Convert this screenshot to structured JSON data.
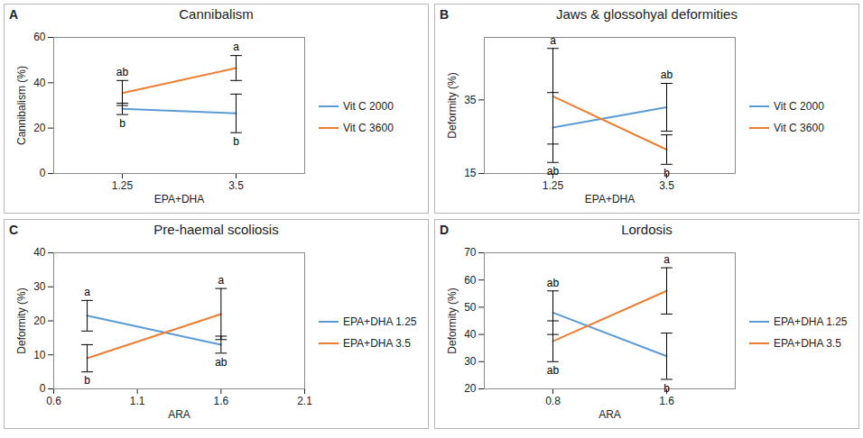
{
  "chart_data": [
    {
      "panel": "A",
      "type": "line",
      "title": "Cannibalism",
      "x_label": "EPA+DHA",
      "y_label": "Cannibalism (%)",
      "categories": [
        "1.25",
        "3.5"
      ],
      "ylim": [
        0,
        60
      ],
      "yticks": [
        0,
        20,
        40,
        60
      ],
      "legend": "right",
      "series": [
        {
          "name": "Vit C 2000",
          "color": "#5b9bd5",
          "values": [
            28.5,
            26.5
          ],
          "errors": [
            2.5,
            8.5
          ],
          "letters": [
            "b",
            "b"
          ]
        },
        {
          "name": "Vit C 3600",
          "color": "#ed7d31",
          "values": [
            35.5,
            46.5
          ],
          "errors": [
            5.5,
            5.5
          ],
          "letters": [
            "ab",
            "a"
          ]
        }
      ]
    },
    {
      "panel": "B",
      "type": "line",
      "title": "Jaws & glossohyal deformities",
      "x_label": "EPA+DHA",
      "y_label": "Deformity (%)",
      "categories": [
        "1.25",
        "3.5"
      ],
      "ylim": [
        15,
        52
      ],
      "yticks": [
        15,
        35
      ],
      "legend": "right",
      "series": [
        {
          "name": "Vit C 2000",
          "color": "#5b9bd5",
          "values": [
            27.5,
            33
          ],
          "errors": [
            9.5,
            6.5
          ],
          "letters": [
            "ab",
            "ab"
          ]
        },
        {
          "name": "Vit C 3600",
          "color": "#ed7d31",
          "values": [
            36,
            21.5
          ],
          "errors": [
            13,
            4
          ],
          "letters": [
            "a",
            "b"
          ]
        }
      ]
    },
    {
      "panel": "C",
      "type": "line",
      "title": "Pre-haemal scoliosis",
      "x_label": "ARA",
      "y_label": "Deformity (%)",
      "x": [
        0.8,
        1.6
      ],
      "xlim": [
        0.6,
        2.1
      ],
      "xticks": [
        0.6,
        1.1,
        1.6,
        2.1
      ],
      "ylim": [
        0,
        40
      ],
      "yticks": [
        0,
        10,
        20,
        30,
        40
      ],
      "legend": "right",
      "series": [
        {
          "name": "EPA+DHA 1.25",
          "color": "#5b9bd5",
          "values": [
            21.5,
            13
          ],
          "errors": [
            4.5,
            2.5
          ],
          "letters": [
            "a",
            "ab"
          ]
        },
        {
          "name": "EPA+DHA 3.5",
          "color": "#ed7d31",
          "values": [
            9,
            22
          ],
          "errors": [
            4,
            7.5
          ],
          "letters": [
            "b",
            "a"
          ]
        }
      ]
    },
    {
      "panel": "D",
      "type": "line",
      "title": "Lordosis",
      "x_label": "ARA",
      "y_label": "Deformity (%)",
      "categories": [
        "0.8",
        "1.6"
      ],
      "ylim": [
        20,
        70
      ],
      "yticks": [
        20,
        30,
        40,
        50,
        60,
        70
      ],
      "legend": "right",
      "series": [
        {
          "name": "EPA+DHA 1.25",
          "color": "#5b9bd5",
          "values": [
            48,
            32
          ],
          "errors": [
            8,
            8.5
          ],
          "letters": [
            "ab",
            "b"
          ]
        },
        {
          "name": "EPA+DHA 3.5",
          "color": "#ed7d31",
          "values": [
            37.5,
            56
          ],
          "errors": [
            7.5,
            8.5
          ],
          "letters": [
            "ab",
            "a"
          ]
        }
      ]
    }
  ]
}
